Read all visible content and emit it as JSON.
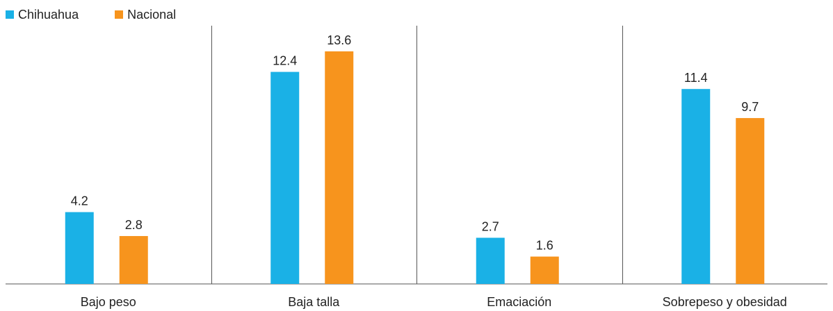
{
  "chart_data": {
    "type": "bar",
    "categories": [
      "Bajo peso",
      "Baja talla",
      "Emaciación",
      "Sobrepeso y obesidad"
    ],
    "series": [
      {
        "name": "Chihuahua",
        "values": [
          4.2,
          12.4,
          2.7,
          11.4
        ],
        "color": "#1AB1E6"
      },
      {
        "name": "Nacional",
        "values": [
          2.8,
          13.6,
          1.6,
          9.7
        ],
        "color": "#F7941D"
      }
    ],
    "value_labels": [
      [
        "4.2",
        "12.4",
        "2.7",
        "11.4"
      ],
      [
        "2.8",
        "13.6",
        "1.6",
        "9.7"
      ]
    ],
    "title": "",
    "xlabel": "",
    "ylabel": "",
    "ylim": [
      0,
      13.6
    ],
    "grid": false,
    "legend": "top-left"
  }
}
